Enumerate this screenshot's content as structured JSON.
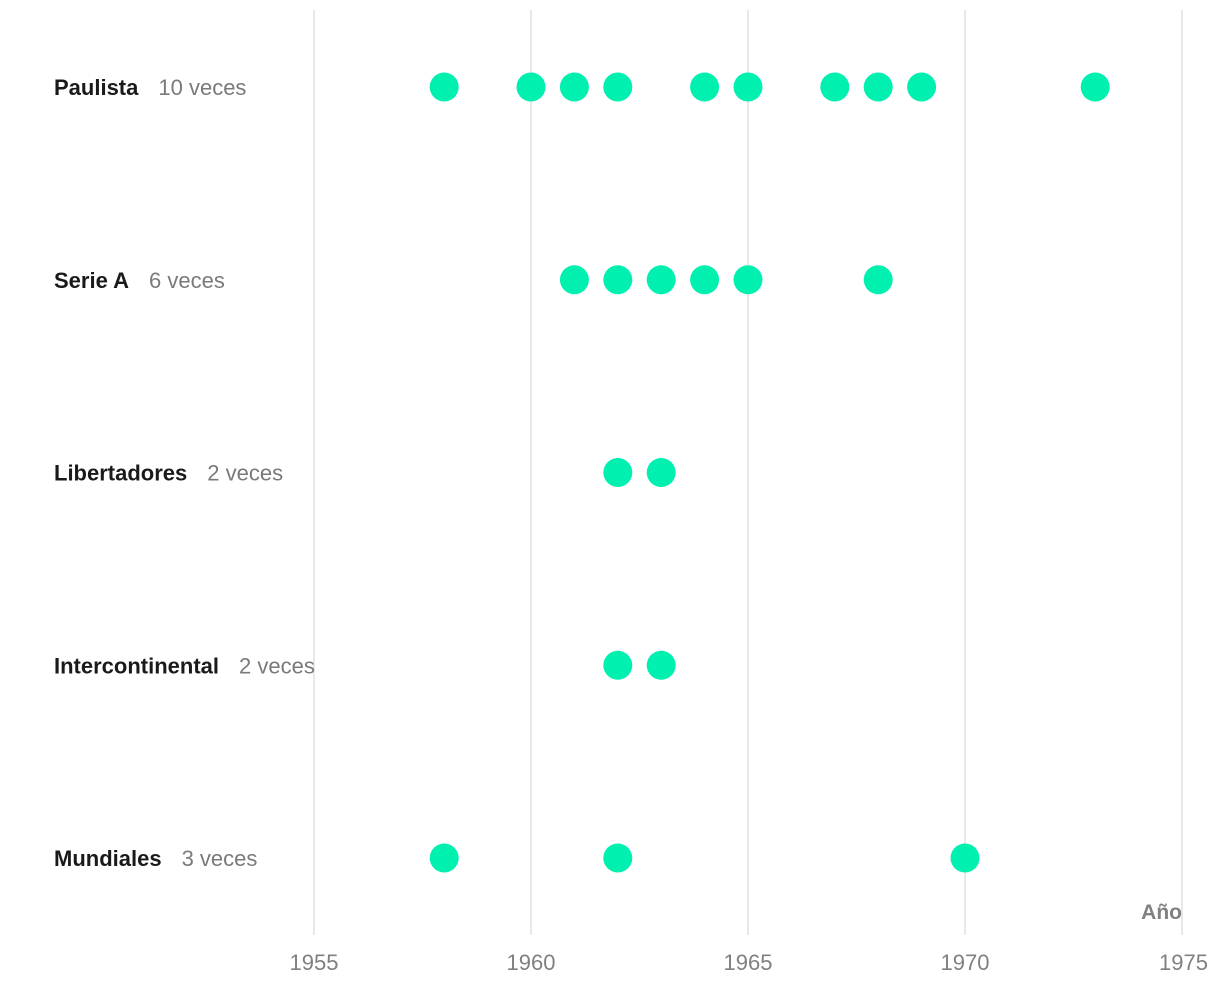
{
  "chart_data": {
    "type": "scatter",
    "xlabel": "Año",
    "xlim": [
      1950,
      1975
    ],
    "xticks": [
      1955,
      1960,
      1965,
      1970,
      1975
    ],
    "grid": true,
    "dot_color": "#00f0b0",
    "rows": [
      {
        "name": "Paulista",
        "count_label": "10 veces",
        "years": [
          1958,
          1960,
          1961,
          1962,
          1964,
          1965,
          1967,
          1968,
          1969,
          1973
        ]
      },
      {
        "name": "Serie A",
        "count_label": "6 veces",
        "years": [
          1961,
          1962,
          1963,
          1964,
          1965,
          1968
        ]
      },
      {
        "name": "Libertadores",
        "count_label": "2 veces",
        "years": [
          1962,
          1963
        ]
      },
      {
        "name": "Intercontinental",
        "count_label": "2 veces",
        "years": [
          1962,
          1963
        ]
      },
      {
        "name": "Mundiales",
        "count_label": "3 veces",
        "years": [
          1958,
          1962,
          1970
        ]
      }
    ]
  }
}
